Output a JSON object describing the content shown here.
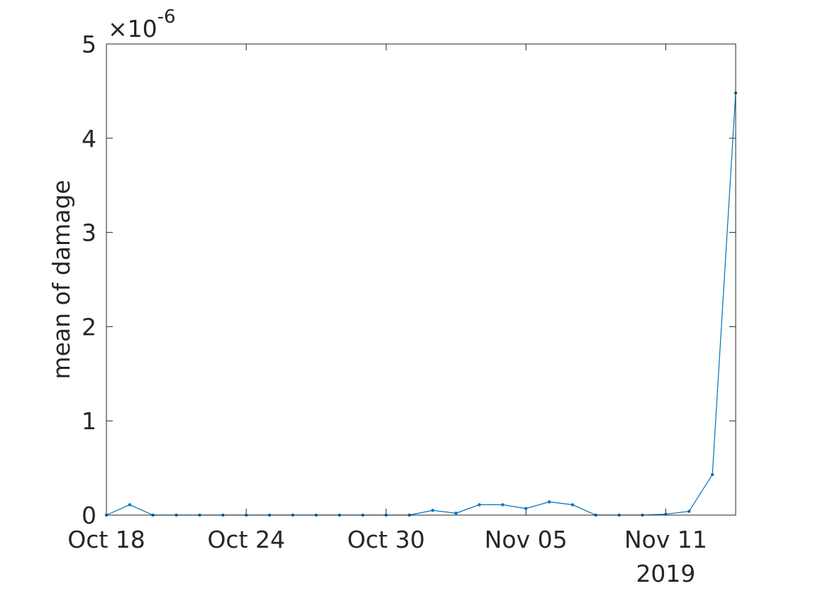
{
  "chart_data": {
    "type": "line",
    "title": "",
    "xlabel": "",
    "ylabel": "mean of damage",
    "x_year_label": "2019",
    "y_exponent_label": "×10",
    "y_exponent_power": "-6",
    "y_scale_factor": 1e-06,
    "ylim": [
      0,
      5
    ],
    "xlim": [
      "2019-10-18",
      "2019-11-14"
    ],
    "y_ticks": [
      0,
      1,
      2,
      3,
      4,
      5
    ],
    "y_tick_labels": [
      "0",
      "1",
      "2",
      "3",
      "4",
      "5"
    ],
    "x_ticks": [
      "2019-10-18",
      "2019-10-24",
      "2019-10-30",
      "2019-11-05",
      "2019-11-11"
    ],
    "x_tick_labels": [
      "Oct 18",
      "Oct 24",
      "Oct 30",
      "Nov 05",
      "Nov 11"
    ],
    "grid": false,
    "box": true,
    "line_color": "#0072BD",
    "series": [
      {
        "marker": "point",
        "x": [
          "2019-10-18",
          "2019-10-19",
          "2019-10-20",
          "2019-10-21",
          "2019-10-22",
          "2019-10-23",
          "2019-10-24",
          "2019-10-25",
          "2019-10-26",
          "2019-10-27",
          "2019-10-28",
          "2019-10-29",
          "2019-10-30",
          "2019-10-31",
          "2019-11-01",
          "2019-11-02",
          "2019-11-03",
          "2019-11-04",
          "2019-11-05",
          "2019-11-06",
          "2019-11-07",
          "2019-11-08",
          "2019-11-09",
          "2019-11-10",
          "2019-11-11",
          "2019-11-12",
          "2019-11-13",
          "2019-11-14"
        ],
        "y": [
          0,
          0.11,
          0,
          0,
          0,
          0,
          0,
          0,
          0,
          0,
          0,
          0,
          0,
          0,
          0.05,
          0.02,
          0.11,
          0.11,
          0.07,
          0.14,
          0.11,
          0,
          0,
          0,
          0.01,
          0.04,
          0.43,
          4.48
        ]
      }
    ]
  }
}
